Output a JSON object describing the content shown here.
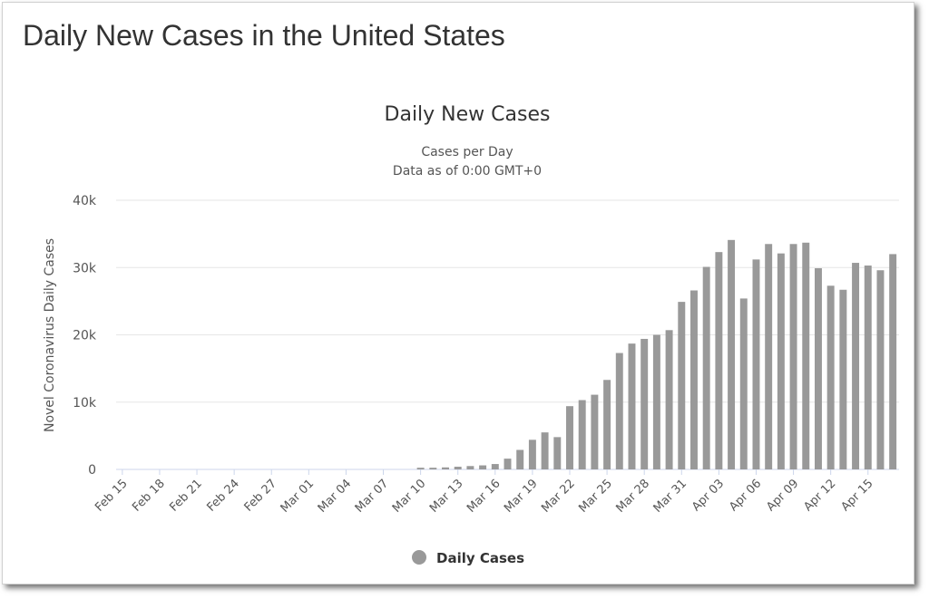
{
  "page": {
    "heading": "Daily New Cases in the United States"
  },
  "chart_data": {
    "type": "bar",
    "title": "Daily New Cases",
    "subtitle": [
      "Cases per Day",
      "Data as of 0:00 GMT+0"
    ],
    "xlabel": "",
    "ylabel": "Novel Coronavirus Daily Cases",
    "ylim": [
      0,
      40000
    ],
    "yticks": [
      {
        "value": 0,
        "label": "0"
      },
      {
        "value": 10000,
        "label": "10k"
      },
      {
        "value": 20000,
        "label": "20k"
      },
      {
        "value": 30000,
        "label": "30k"
      },
      {
        "value": 40000,
        "label": "40k"
      }
    ],
    "grid": true,
    "legend": {
      "position": "bottom-center",
      "entries": [
        "Daily Cases"
      ]
    },
    "bar_color": "#999999",
    "categories": [
      "Feb 15",
      "Feb 16",
      "Feb 17",
      "Feb 18",
      "Feb 19",
      "Feb 20",
      "Feb 21",
      "Feb 22",
      "Feb 23",
      "Feb 24",
      "Feb 25",
      "Feb 26",
      "Feb 27",
      "Feb 28",
      "Feb 29",
      "Mar 01",
      "Mar 02",
      "Mar 03",
      "Mar 04",
      "Mar 05",
      "Mar 06",
      "Mar 07",
      "Mar 08",
      "Mar 09",
      "Mar 10",
      "Mar 11",
      "Mar 12",
      "Mar 13",
      "Mar 14",
      "Mar 15",
      "Mar 16",
      "Mar 17",
      "Mar 18",
      "Mar 19",
      "Mar 20",
      "Mar 21",
      "Mar 22",
      "Mar 23",
      "Mar 24",
      "Mar 25",
      "Mar 26",
      "Mar 27",
      "Mar 28",
      "Mar 29",
      "Mar 30",
      "Mar 31",
      "Apr 01",
      "Apr 02",
      "Apr 03",
      "Apr 04",
      "Apr 05",
      "Apr 06",
      "Apr 07",
      "Apr 08",
      "Apr 09",
      "Apr 10",
      "Apr 11",
      "Apr 12",
      "Apr 13",
      "Apr 14",
      "Apr 15",
      "Apr 16",
      "Apr 17"
    ],
    "tick_labels": [
      "Feb 15",
      "Feb 18",
      "Feb 21",
      "Feb 24",
      "Feb 27",
      "Mar 01",
      "Mar 04",
      "Mar 07",
      "Mar 10",
      "Mar 13",
      "Mar 16",
      "Mar 19",
      "Mar 22",
      "Mar 25",
      "Mar 28",
      "Mar 31",
      "Apr 03",
      "Apr 06",
      "Apr 09",
      "Apr 12",
      "Apr 15"
    ],
    "series": [
      {
        "name": "Daily Cases",
        "values": [
          0,
          0,
          0,
          0,
          0,
          0,
          0,
          0,
          0,
          0,
          0,
          0,
          0,
          0,
          0,
          0,
          0,
          0,
          0,
          0,
          0,
          0,
          0,
          0,
          250,
          250,
          300,
          400,
          500,
          600,
          800,
          1600,
          2900,
          4400,
          5500,
          4800,
          9400,
          10300,
          11100,
          13300,
          17300,
          18700,
          19400,
          20000,
          20700,
          24900,
          26600,
          30100,
          32300,
          34100,
          25400,
          31200,
          33500,
          32100,
          33500,
          33700,
          29900,
          27300,
          26700,
          30700,
          30300,
          29600,
          32000
        ]
      }
    ]
  }
}
